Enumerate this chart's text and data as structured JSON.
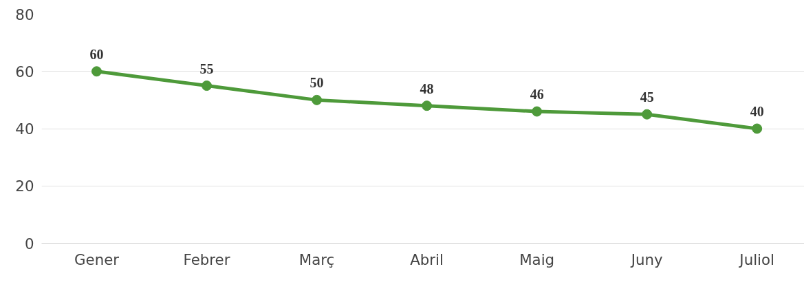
{
  "chart_data": {
    "type": "line",
    "categories": [
      "Gener",
      "Febrer",
      "Març",
      "Abril",
      "Maig",
      "Juny",
      "Juliol"
    ],
    "series": [
      {
        "color": "#4e9a3a",
        "values": [
          60,
          55,
          50,
          48,
          46,
          45,
          40
        ]
      }
    ],
    "ylim": [
      0,
      80
    ],
    "yticks": [
      0,
      20,
      40,
      60,
      80
    ],
    "grid": "y",
    "data_labels": true,
    "marker": "circle",
    "line_style": "solid"
  }
}
